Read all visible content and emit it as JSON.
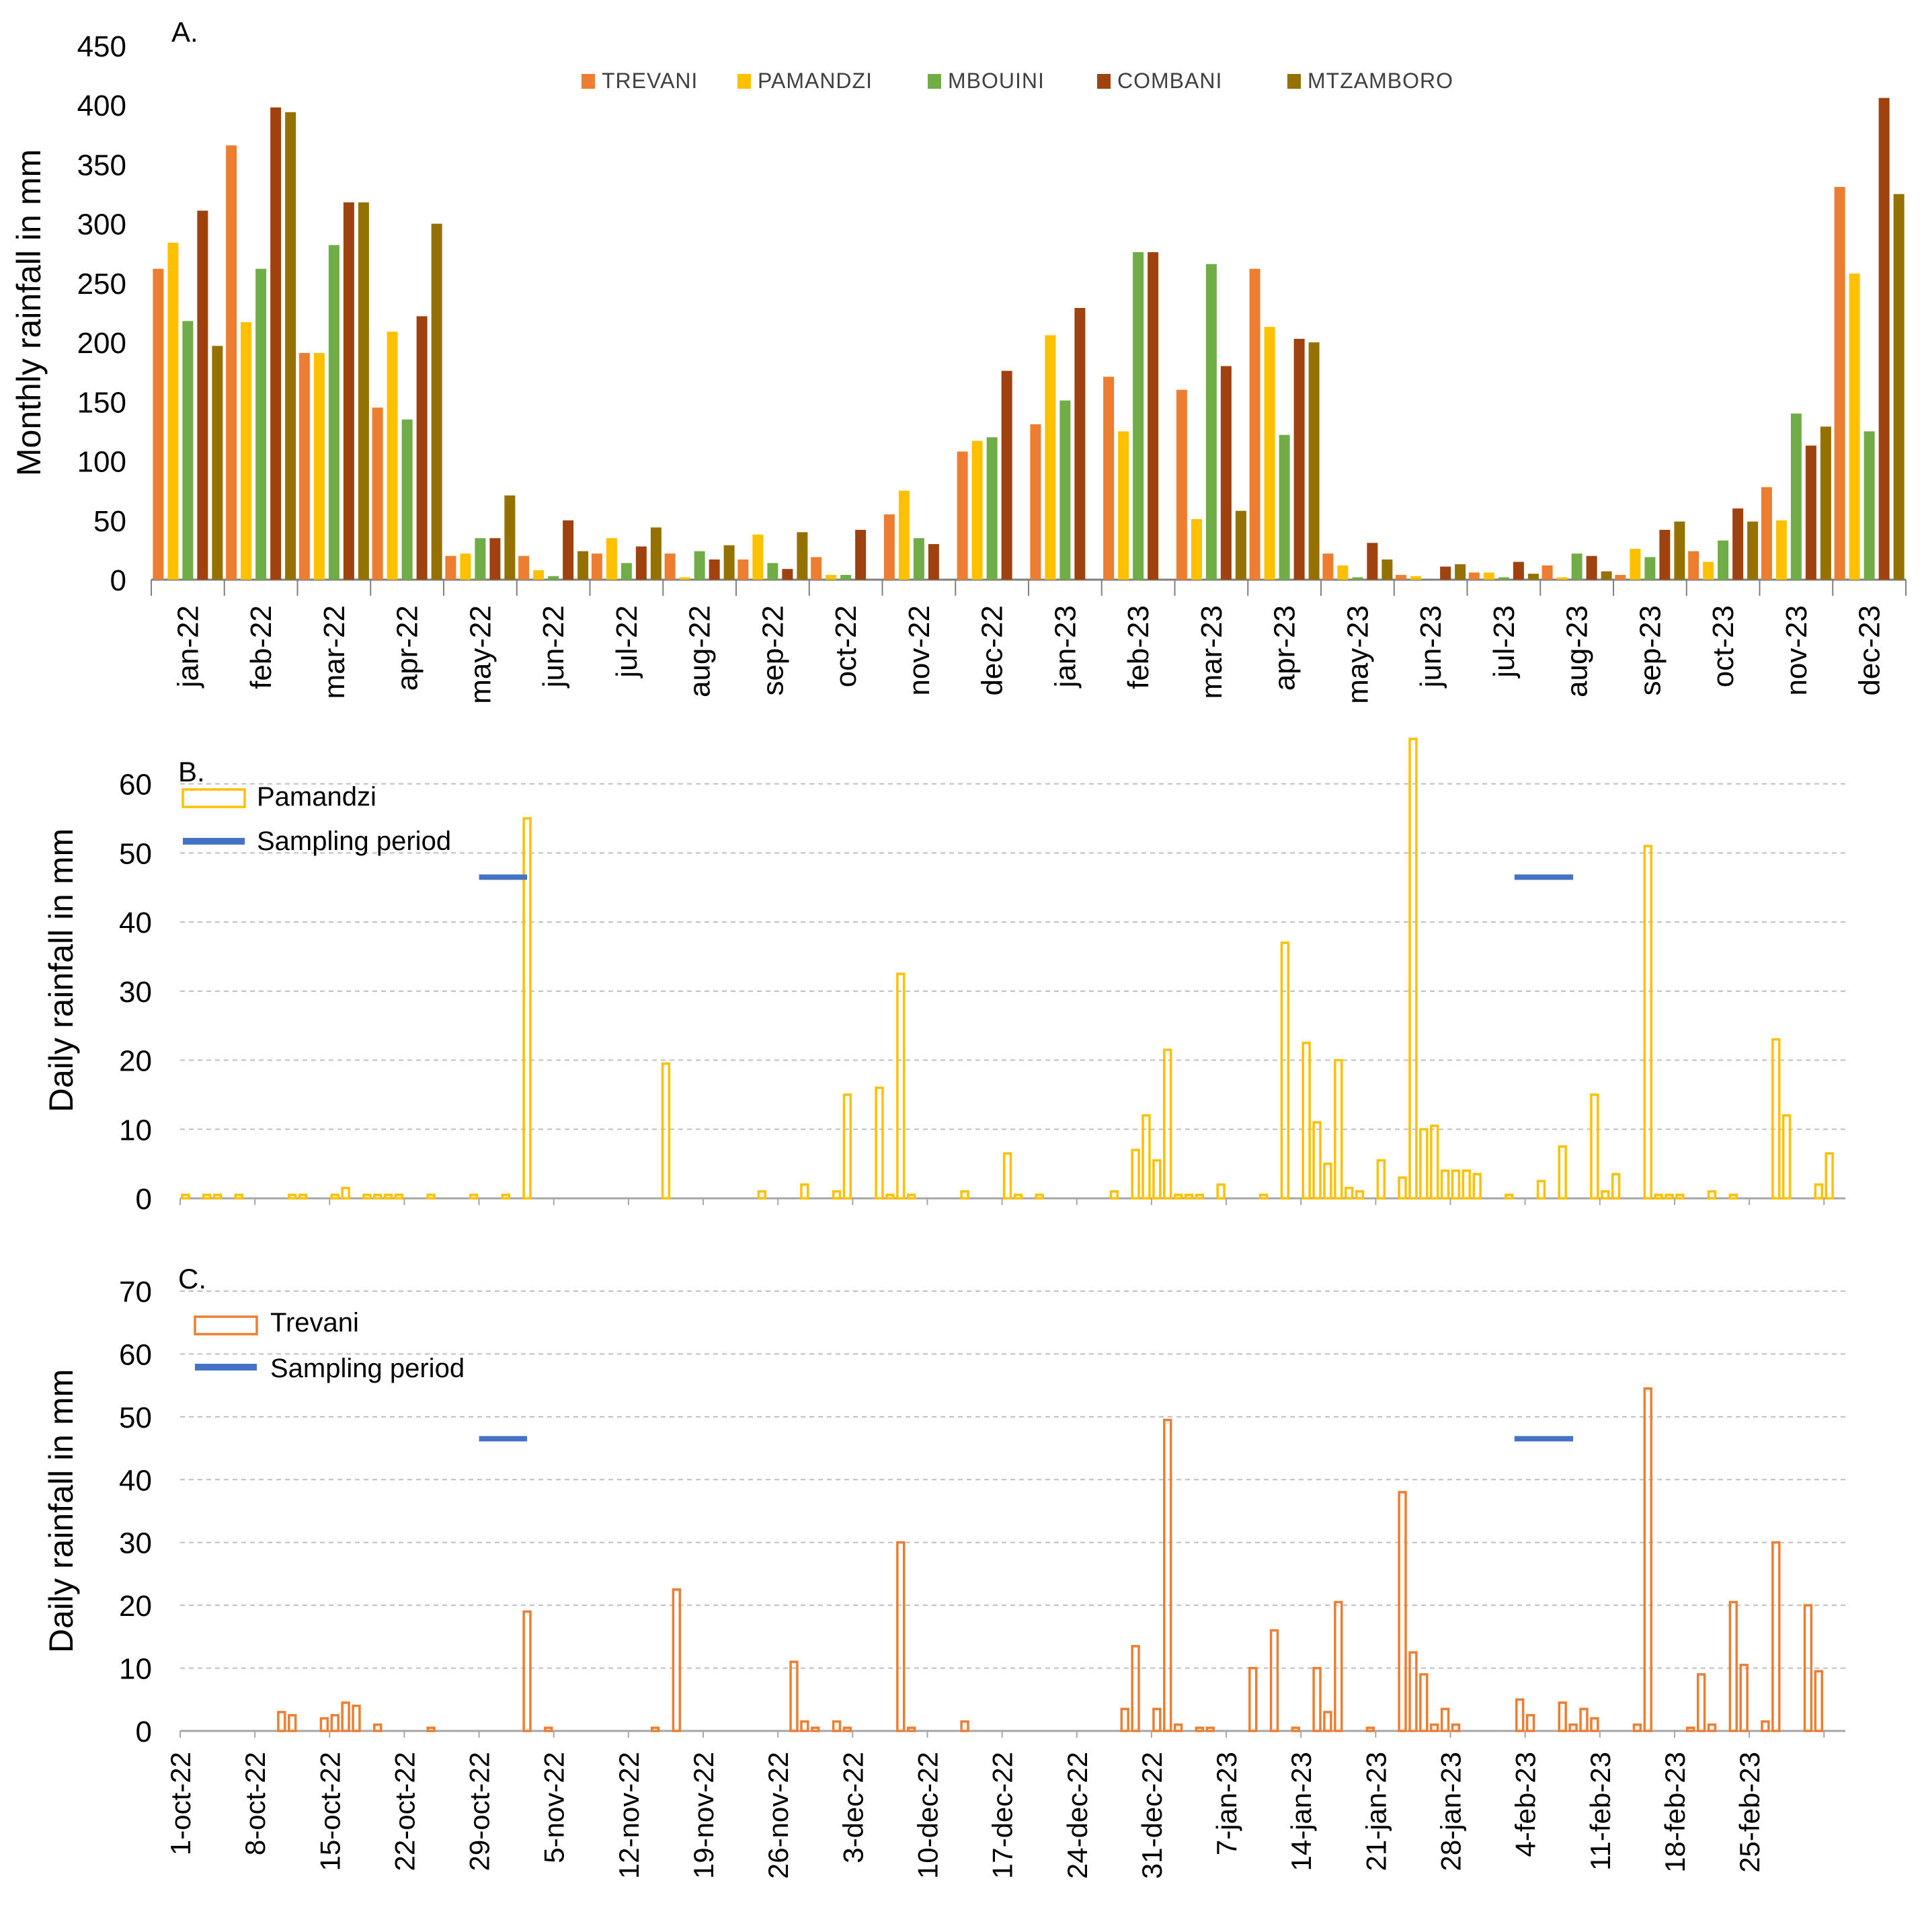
{
  "chart_data": [
    {
      "panel": "A.",
      "type": "bar",
      "ylabel": "Monthly rainfall in mm",
      "xlabel": "",
      "ylim": [
        0,
        450
      ],
      "yticks": [
        0,
        50,
        100,
        150,
        200,
        250,
        300,
        350,
        400,
        450
      ],
      "legend_position": "top-center",
      "categories": [
        "jan-22",
        "feb-22",
        "mar-22",
        "apr-22",
        "may-22",
        "jun-22",
        "jul-22",
        "aug-22",
        "sep-22",
        "oct-22",
        "nov-22",
        "dec-22",
        "jan-23",
        "feb-23",
        "mar-23",
        "apr-23",
        "may-23",
        "jun-23",
        "jul-23",
        "aug-23",
        "sep-23",
        "oct-23",
        "nov-23",
        "dec-23"
      ],
      "series": [
        {
          "name": "TREVANI",
          "color": "#ED7D31",
          "values": [
            262,
            366,
            191,
            145,
            20,
            20,
            22,
            22,
            17,
            19,
            55,
            108,
            131,
            171,
            160,
            262,
            22,
            4,
            6,
            12,
            4,
            24,
            78,
            331
          ]
        },
        {
          "name": "PAMANDZI",
          "color": "#FFC000",
          "values": [
            284,
            217,
            191,
            209,
            22,
            8,
            35,
            2,
            38,
            4,
            75,
            117,
            206,
            125,
            51,
            213,
            12,
            3,
            6,
            2,
            26,
            15,
            50,
            258
          ]
        },
        {
          "name": "MBOUINI",
          "color": "#70AD47",
          "values": [
            218,
            262,
            282,
            135,
            35,
            3,
            14,
            24,
            14,
            4,
            35,
            120,
            151,
            276,
            266,
            122,
            2,
            0,
            2,
            22,
            19,
            33,
            140,
            125
          ]
        },
        {
          "name": "COMBANI",
          "color": "#A0420F",
          "values": [
            311,
            398,
            318,
            222,
            35,
            50,
            28,
            17,
            9,
            42,
            30,
            176,
            229,
            276,
            180,
            203,
            31,
            11,
            15,
            20,
            42,
            60,
            113,
            406
          ]
        },
        {
          "name": "MTZAMBORO",
          "color": "#947100",
          "values": [
            197,
            394,
            318,
            300,
            71,
            24,
            44,
            29,
            40,
            0,
            0,
            0,
            0,
            0,
            58,
            200,
            17,
            13,
            5,
            7,
            49,
            49,
            129,
            325
          ]
        }
      ]
    },
    {
      "panel": "B.",
      "type": "bar",
      "ylabel": "Daily rainfall in mm",
      "xlabel": "",
      "ylim": [
        0,
        66
      ],
      "yticks": [
        0,
        10,
        20,
        30,
        40,
        50,
        60
      ],
      "legend_position": "top-left",
      "x_start": "2022-10-01",
      "days": 152,
      "series": [
        {
          "name": "Pamandzi",
          "style": "outline-bar",
          "color": "#FFC000",
          "values": [
            [
              1,
              0.5
            ],
            [
              3,
              0.5
            ],
            [
              4,
              0.5
            ],
            [
              6,
              0.5
            ],
            [
              11,
              0.5
            ],
            [
              12,
              0.5
            ],
            [
              15,
              0.5
            ],
            [
              16,
              1.5
            ],
            [
              18,
              0.5
            ],
            [
              19,
              0.5
            ],
            [
              20,
              0.5
            ],
            [
              21,
              0.5
            ],
            [
              24,
              0.5
            ],
            [
              28,
              0.5
            ],
            [
              31,
              0.5
            ],
            [
              33,
              55
            ],
            [
              46,
              19.5
            ],
            [
              55,
              1
            ],
            [
              59,
              2
            ],
            [
              62,
              1
            ],
            [
              63,
              15
            ],
            [
              66,
              16
            ],
            [
              67,
              0.5
            ],
            [
              68,
              32.5
            ],
            [
              69,
              0.5
            ],
            [
              74,
              1
            ],
            [
              78,
              6.5
            ],
            [
              79,
              0.5
            ],
            [
              81,
              0.5
            ],
            [
              88,
              1
            ],
            [
              90,
              7
            ],
            [
              91,
              12
            ],
            [
              92,
              5.5
            ],
            [
              93,
              21.5
            ],
            [
              94,
              0.5
            ],
            [
              95,
              0.5
            ],
            [
              96,
              0.5
            ],
            [
              98,
              2
            ],
            [
              102,
              0.5
            ],
            [
              104,
              37
            ],
            [
              106,
              22.5
            ],
            [
              107,
              11
            ],
            [
              108,
              5
            ],
            [
              109,
              20
            ],
            [
              110,
              1.5
            ],
            [
              111,
              1
            ],
            [
              113,
              5.5
            ],
            [
              115,
              3
            ],
            [
              116,
              66.5
            ],
            [
              117,
              10
            ],
            [
              118,
              10.5
            ],
            [
              119,
              4
            ],
            [
              120,
              4
            ],
            [
              121,
              4
            ],
            [
              122,
              3.5
            ],
            [
              125,
              0.5
            ],
            [
              128,
              2.5
            ],
            [
              130,
              7.5
            ],
            [
              133,
              15
            ],
            [
              134,
              1
            ],
            [
              135,
              3.5
            ],
            [
              138,
              51
            ],
            [
              139,
              0.5
            ],
            [
              140,
              0.5
            ],
            [
              141,
              0.5
            ],
            [
              144,
              1
            ],
            [
              146,
              0.5
            ],
            [
              150,
              23
            ],
            [
              151,
              12
            ],
            [
              154,
              2
            ],
            [
              155,
              6.5
            ]
          ]
        },
        {
          "name": "Sampling period",
          "style": "line",
          "color": "#4472C4",
          "segments": [
            {
              "from": 29,
              "to": 33.5,
              "value": 46.5
            },
            {
              "from": 126,
              "to": 131.5,
              "value": 46.5
            }
          ]
        }
      ]
    },
    {
      "panel": "C.",
      "type": "bar",
      "ylabel": "Daily rainfall in mm",
      "xlabel": "",
      "ylim": [
        0,
        70
      ],
      "yticks": [
        0,
        10,
        20,
        30,
        40,
        50,
        60,
        70
      ],
      "legend_position": "top-left",
      "x_start": "2022-10-01",
      "days": 152,
      "categories": [
        "1-oct-22",
        "8-oct-22",
        "15-oct-22",
        "22-oct-22",
        "29-oct-22",
        "5-nov-22",
        "12-nov-22",
        "19-nov-22",
        "26-nov-22",
        "3-dec-22",
        "10-dec-22",
        "17-dec-22",
        "24-dec-22",
        "31-dec-22",
        "7-jan-23",
        "14-jan-23",
        "21-jan-23",
        "28-jan-23",
        "4-feb-23",
        "11-feb-23",
        "18-feb-23",
        "25-feb-23"
      ],
      "series": [
        {
          "name": "Trevani",
          "style": "outline-bar",
          "color": "#ED7D31",
          "values": [
            [
              10,
              3
            ],
            [
              11,
              2.5
            ],
            [
              14,
              2
            ],
            [
              15,
              2.5
            ],
            [
              16,
              4.5
            ],
            [
              17,
              4
            ],
            [
              19,
              1
            ],
            [
              24,
              0.5
            ],
            [
              33,
              19
            ],
            [
              35,
              0.5
            ],
            [
              45,
              0.5
            ],
            [
              47,
              22.5
            ],
            [
              58,
              11
            ],
            [
              59,
              1.5
            ],
            [
              60,
              0.5
            ],
            [
              62,
              1.5
            ],
            [
              63,
              0.5
            ],
            [
              68,
              30
            ],
            [
              69,
              0.5
            ],
            [
              74,
              1.5
            ],
            [
              89,
              3.5
            ],
            [
              90,
              13.5
            ],
            [
              92,
              3.5
            ],
            [
              93,
              49.5
            ],
            [
              94,
              1
            ],
            [
              96,
              0.5
            ],
            [
              97,
              0.5
            ],
            [
              101,
              10
            ],
            [
              103,
              16
            ],
            [
              105,
              0.5
            ],
            [
              107,
              10
            ],
            [
              108,
              3
            ],
            [
              109,
              20.5
            ],
            [
              112,
              0.5
            ],
            [
              115,
              38
            ],
            [
              116,
              12.5
            ],
            [
              117,
              9
            ],
            [
              118,
              1
            ],
            [
              119,
              3.5
            ],
            [
              120,
              1
            ],
            [
              126,
              5
            ],
            [
              127,
              2.5
            ],
            [
              130,
              4.5
            ],
            [
              131,
              1
            ],
            [
              132,
              3.5
            ],
            [
              133,
              2
            ],
            [
              137,
              1
            ],
            [
              138,
              54.5
            ],
            [
              142,
              0.5
            ],
            [
              143,
              9
            ],
            [
              144,
              1
            ],
            [
              146,
              20.5
            ],
            [
              147,
              10.5
            ],
            [
              149,
              1.5
            ],
            [
              150,
              30
            ],
            [
              153,
              20
            ],
            [
              154,
              9.5
            ]
          ]
        },
        {
          "name": "Sampling period",
          "style": "line",
          "color": "#4472C4",
          "segments": [
            {
              "from": 29,
              "to": 33.5,
              "value": 46.5
            },
            {
              "from": 126,
              "to": 131.5,
              "value": 46.5
            }
          ]
        }
      ]
    }
  ]
}
